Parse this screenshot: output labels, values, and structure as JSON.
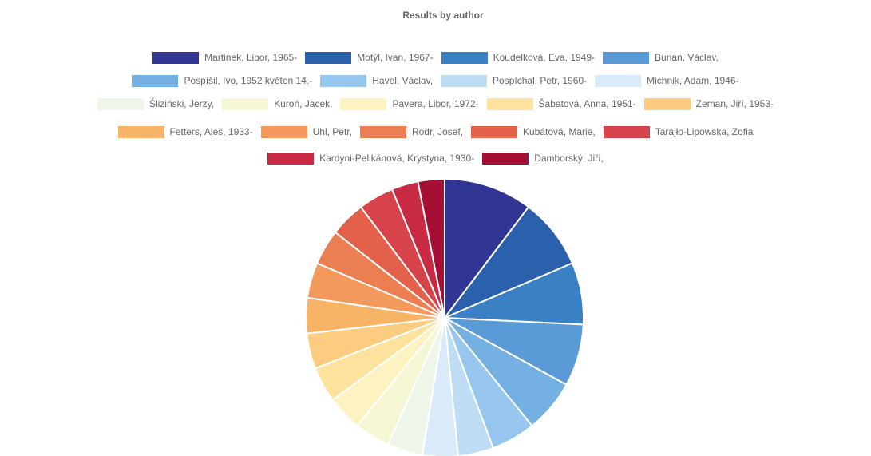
{
  "chart_data": {
    "type": "pie",
    "title": "Results by author",
    "legend_position": "top",
    "categories": [
      "Martinek, Libor, 1965-",
      "Motýl, Ivan, 1967-",
      "Koudelková, Eva, 1949-",
      "Burian, Václav,",
      "Pospíšil, Ivo, 1952 květen 14.-",
      "Havel, Václav,",
      "Pospíchal, Petr, 1960-",
      "Michnik, Adam, 1946-",
      "Śliziński, Jerzy,",
      "Kuroń, Jacek,",
      "Pavera, Libor, 1972-",
      "Šabatová, Anna, 1951-",
      "Zeman, Jiří, 1953-",
      "Fetters, Aleš, 1933-",
      "Uhl, Petr,",
      "Rodr, Josef,",
      "Kubátová, Marie,",
      "Tarajło-Lipowska, Zofia",
      "Kardyni-Pelikánová, Krystyna, 1930-",
      "Damborský, Jiří,"
    ],
    "values": [
      10,
      8,
      7,
      7,
      6,
      5,
      4,
      4,
      4,
      4,
      4,
      4,
      4,
      4,
      4,
      4,
      4,
      4,
      3,
      3
    ],
    "colors": [
      "#313695",
      "#2b60ad",
      "#3a80c4",
      "#5a9ad6",
      "#74b0e1",
      "#97c7ee",
      "#bedcf4",
      "#d9ebf8",
      "#eef6ea",
      "#f4f6d4",
      "#fdf2c2",
      "#fde29d",
      "#fccd80",
      "#f8b466",
      "#f3995b",
      "#ec7f51",
      "#e3604a",
      "#d6434b",
      "#c72a42",
      "#a50f33"
    ]
  }
}
